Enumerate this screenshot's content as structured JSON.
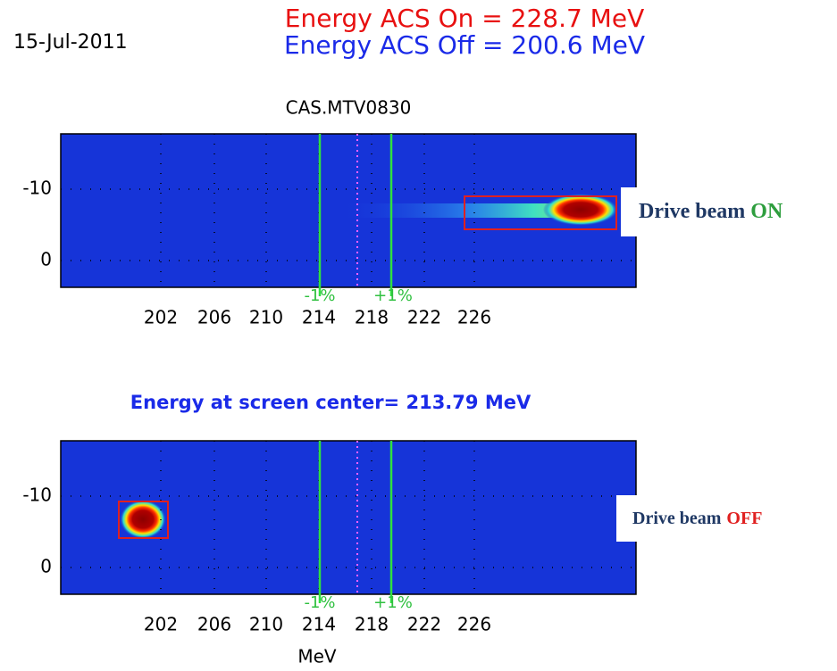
{
  "header": {
    "date": "15-Jul-2011",
    "energy_on": "Energy ACS On = 228.7 MeV",
    "energy_off": "Energy ACS Off = 200.6 MeV"
  },
  "panels": [
    {
      "title": "CAS.MTV0830",
      "y_tick_labels": [
        "-10",
        "0"
      ],
      "x_tick_labels": [
        "202",
        "206",
        "210",
        "214",
        "218",
        "222",
        "226"
      ],
      "markers": [
        "-1%",
        "+1%"
      ],
      "label": {
        "text": "Drive beam",
        "state": "ON"
      }
    },
    {
      "title": "Energy at screen center= 213.79 MeV",
      "y_tick_labels": [
        "-10",
        "0"
      ],
      "x_tick_labels": [
        "202",
        "206",
        "210",
        "214",
        "218",
        "222",
        "226"
      ],
      "markers": [
        "-1%",
        "+1%"
      ],
      "axis_label": "MeV",
      "label": {
        "text": "Drive beam",
        "state": "OFF"
      }
    }
  ]
}
